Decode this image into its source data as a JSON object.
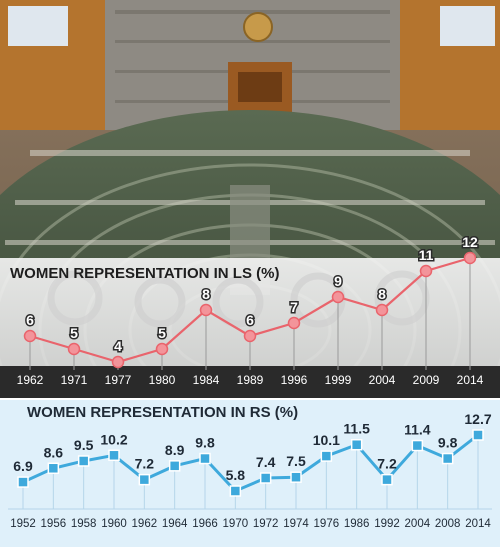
{
  "colors": {
    "ls_line": "#e9646c",
    "ls_marker": "#f3949a",
    "rs_line": "#3ea9dc",
    "rs_marker": "#3ea9dc",
    "rs_background": "#dff0fa",
    "ls_band": "#f0f0f0"
  },
  "chart_data": [
    {
      "type": "line",
      "title": "WOMEN REPRESENTATION IN LS (%)",
      "xlabel": "",
      "ylabel": "",
      "x": [
        "1962",
        "1971",
        "1977",
        "1980",
        "1984",
        "1989",
        "1996",
        "1999",
        "2004",
        "2009",
        "2014"
      ],
      "values": [
        6,
        5,
        4,
        5,
        8,
        6,
        7,
        9,
        8,
        11,
        12
      ],
      "ylim": [
        4,
        12
      ],
      "grid": false,
      "legend": "none"
    },
    {
      "type": "line",
      "title": "WOMEN REPRESENTATION IN RS (%)",
      "xlabel": "",
      "ylabel": "",
      "x": [
        "1952",
        "1956",
        "1958",
        "1960",
        "1962",
        "1964",
        "1966",
        "1970",
        "1972",
        "1974",
        "1976",
        "1986",
        "1992",
        "2004",
        "2008",
        "2014"
      ],
      "values": [
        6.9,
        8.6,
        9.5,
        10.2,
        7.2,
        8.9,
        9.8,
        5.8,
        7.4,
        7.5,
        10.1,
        11.5,
        7.2,
        11.4,
        9.8,
        12.7
      ],
      "ylim": [
        5.8,
        12.7
      ],
      "grid": false,
      "legend": "none"
    }
  ]
}
